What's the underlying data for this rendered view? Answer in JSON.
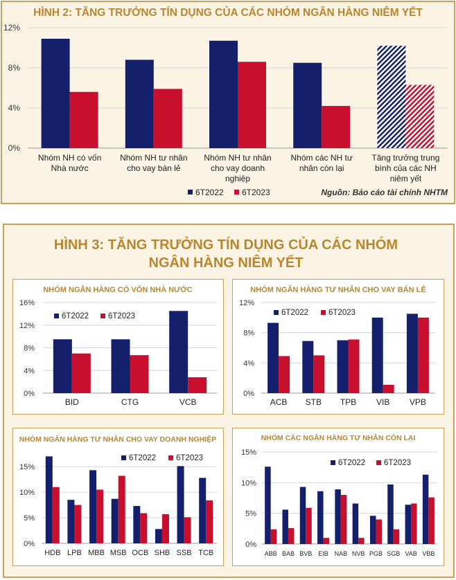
{
  "colors": {
    "navy": "#14206b",
    "red": "#c8102e",
    "gold": "#b8862e",
    "grid": "#d6d6d6"
  },
  "fig2": {
    "title": "HÌNH 2: TĂNG TRƯỞNG TÍN DỤNG CỦA CÁC NHÓM NGÂN HÀNG NIÊM YẾT",
    "source": "Nguồn: Báo cáo tài chính NHTM",
    "chart_data": {
      "type": "bar",
      "categories": [
        [
          "Nhóm NH có vốn",
          "Nhà nước"
        ],
        [
          "Nhóm NH tư nhân",
          "cho vay bán lẻ"
        ],
        [
          "Nhóm NH tư nhân",
          "cho vay doanh",
          "nghiệp"
        ],
        [
          "Nhóm các NH tư",
          "nhân còn lại"
        ],
        [
          "Tăng trưởng trung",
          "bình của các NH",
          "niêm yết"
        ]
      ],
      "series": [
        {
          "name": "6T2022",
          "values": [
            10.9,
            8.8,
            10.7,
            8.5,
            10.2
          ]
        },
        {
          "name": "6T2023",
          "values": [
            5.6,
            5.9,
            8.6,
            4.2,
            6.3
          ]
        }
      ],
      "hatched_category": 4,
      "ylim": [
        0,
        12
      ],
      "yticks": [
        "0%",
        "4%",
        "8%",
        "12%"
      ],
      "legend_position": "bottom"
    }
  },
  "fig3": {
    "title_line1": "HÌNH 3: TĂNG TRƯỞNG TÍN DỤNG CỦA CÁC NHÓM",
    "title_line2": "NGÂN HÀNG NIÊM YẾT",
    "panels": [
      {
        "title": "NHÓM NGÂN HÀNG CÓ VỐN NHÀ NƯỚC",
        "chart_data": {
          "type": "bar",
          "categories": [
            "BID",
            "CTG",
            "VCB"
          ],
          "series": [
            {
              "name": "6T2022",
              "values": [
                9.5,
                9.5,
                14.5
              ]
            },
            {
              "name": "6T2023",
              "values": [
                7.0,
                6.7,
                2.8
              ]
            }
          ],
          "ylim": [
            0,
            16
          ],
          "yticks": [
            "0%",
            "4%",
            "8%",
            "12%",
            "16%"
          ],
          "legend_position": "top-left"
        }
      },
      {
        "title": "NHÓM NGÂN HÀNG TƯ NHÂN CHO VAY BÁN LẺ",
        "chart_data": {
          "type": "bar",
          "categories": [
            "ACB",
            "STB",
            "TPB",
            "VIB",
            "VPB"
          ],
          "series": [
            {
              "name": "6T2022",
              "values": [
                9.3,
                6.9,
                7.0,
                10.0,
                10.5
              ]
            },
            {
              "name": "6T2023",
              "values": [
                4.9,
                5.0,
                7.1,
                1.1,
                10.0
              ]
            }
          ],
          "ylim": [
            0,
            12
          ],
          "yticks": [
            "0%",
            "4%",
            "8%",
            "12%"
          ],
          "legend_position": "top-left"
        }
      },
      {
        "title": "NHÓM NGÂN HÀNG TƯ NHÂN CHO VAY DOANH NGHIỆP",
        "chart_data": {
          "type": "bar",
          "categories": [
            "HDB",
            "LPB",
            "MBB",
            "MSB",
            "OCB",
            "SHB",
            "SSB",
            "TCB"
          ],
          "series": [
            {
              "name": "6T2022",
              "values": [
                17.0,
                8.5,
                14.3,
                8.7,
                7.3,
                2.8,
                15.1,
                12.8
              ]
            },
            {
              "name": "6T2023",
              "values": [
                11.0,
                7.5,
                10.5,
                13.2,
                5.9,
                5.7,
                5.1,
                8.4
              ]
            }
          ],
          "ylim": [
            0,
            18
          ],
          "yticks": [
            "0%",
            "5%",
            "10%",
            "15%"
          ],
          "legend_position": "top-right"
        }
      },
      {
        "title": "NHÓM CÁC NGÂN HÀNG TƯ NHÂN CÒN LẠI",
        "chart_data": {
          "type": "bar",
          "categories": [
            "ABB",
            "BAB",
            "BVB",
            "EIB",
            "NAB",
            "NVB",
            "PGB",
            "SGB",
            "VAB",
            "VBB"
          ],
          "series": [
            {
              "name": "6T2022",
              "values": [
                12.6,
                5.6,
                9.3,
                8.6,
                8.9,
                6.6,
                4.6,
                9.7,
                6.4,
                11.3
              ]
            },
            {
              "name": "6T2023",
              "values": [
                2.4,
                2.6,
                5.9,
                1.0,
                8.0,
                1.0,
                4.0,
                2.4,
                6.6,
                7.6
              ]
            }
          ],
          "ylim": [
            0,
            15
          ],
          "yticks": [
            "0%",
            "5%",
            "10%",
            "15%"
          ],
          "legend_position": "top-right"
        }
      }
    ]
  }
}
